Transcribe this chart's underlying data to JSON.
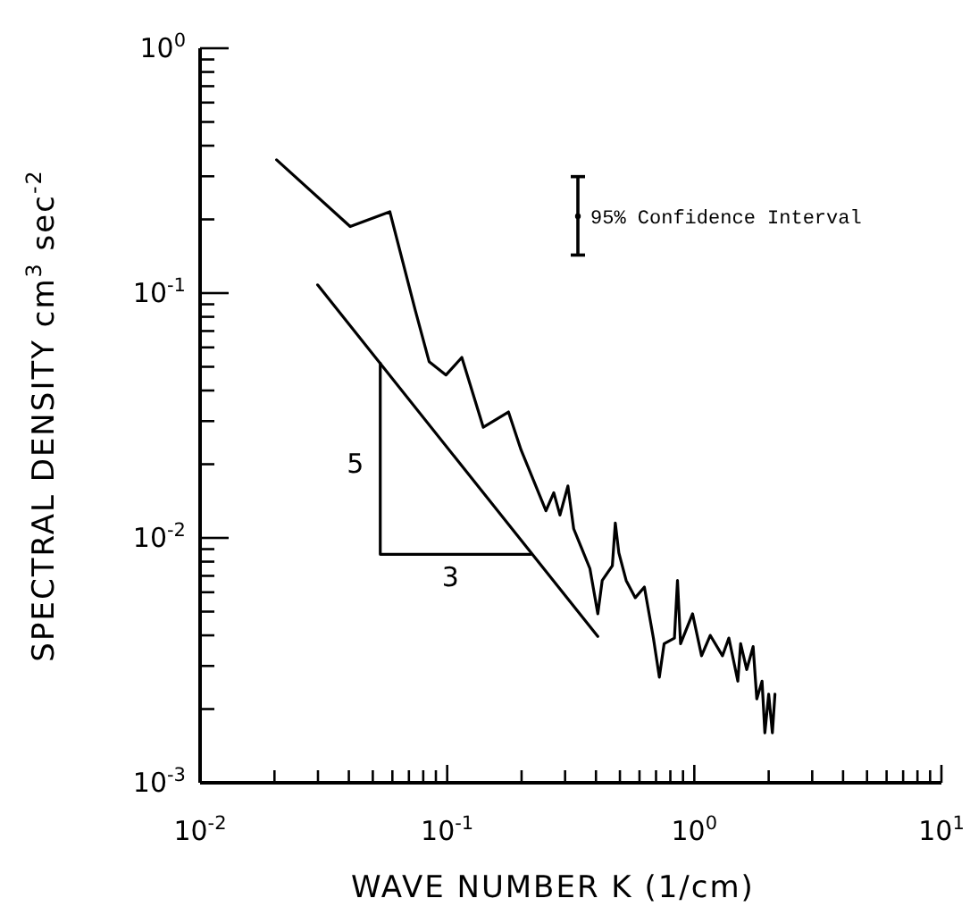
{
  "chart_data": {
    "type": "line",
    "xlabel": "WAVE NUMBER  K  (1/cm)",
    "ylabel": "SPECTRAL DENSITY  cm$^{3}$ sec$^{-2}$",
    "log": "xy",
    "grid": false,
    "legend": false,
    "line_style": "solid",
    "xlim": [
      0.01,
      10
    ],
    "ylim": [
      0.001,
      1
    ],
    "xticks": [
      {
        "value": 0.01,
        "label": "10$^{-2}$"
      },
      {
        "value": 0.02,
        "label": null
      },
      {
        "value": 0.03,
        "label": null
      },
      {
        "value": 0.04,
        "label": null
      },
      {
        "value": 0.05,
        "label": null
      },
      {
        "value": 0.06,
        "label": null
      },
      {
        "value": 0.07,
        "label": null
      },
      {
        "value": 0.08,
        "label": null
      },
      {
        "value": 0.09,
        "label": null
      },
      {
        "value": 0.1,
        "label": "10$^{-1}$"
      },
      {
        "value": 0.2,
        "label": null
      },
      {
        "value": 0.3,
        "label": null
      },
      {
        "value": 0.4,
        "label": null
      },
      {
        "value": 0.5,
        "label": null
      },
      {
        "value": 0.6,
        "label": null
      },
      {
        "value": 0.7,
        "label": null
      },
      {
        "value": 0.8,
        "label": null
      },
      {
        "value": 0.9,
        "label": null
      },
      {
        "value": 1,
        "label": "10$^{0}$"
      },
      {
        "value": 2,
        "label": null
      },
      {
        "value": 3,
        "label": null
      },
      {
        "value": 4,
        "label": null
      },
      {
        "value": 5,
        "label": null
      },
      {
        "value": 6,
        "label": null
      },
      {
        "value": 7,
        "label": null
      },
      {
        "value": 8,
        "label": null
      },
      {
        "value": 9,
        "label": null
      },
      {
        "value": 10,
        "label": "10$^{1}$"
      }
    ],
    "yticks": [
      {
        "value": 0.001,
        "label": "10$^{-3}$"
      },
      {
        "value": 0.002,
        "label": null
      },
      {
        "value": 0.003,
        "label": null
      },
      {
        "value": 0.004,
        "label": null
      },
      {
        "value": 0.005,
        "label": null
      },
      {
        "value": 0.006,
        "label": null
      },
      {
        "value": 0.007,
        "label": null
      },
      {
        "value": 0.008,
        "label": null
      },
      {
        "value": 0.009,
        "label": null
      },
      {
        "value": 0.01,
        "label": "10$^{-2}$"
      },
      {
        "value": 0.02,
        "label": null
      },
      {
        "value": 0.03,
        "label": null
      },
      {
        "value": 0.04,
        "label": null
      },
      {
        "value": 0.05,
        "label": null
      },
      {
        "value": 0.06,
        "label": null
      },
      {
        "value": 0.07,
        "label": null
      },
      {
        "value": 0.08,
        "label": null
      },
      {
        "value": 0.09,
        "label": null
      },
      {
        "value": 0.1,
        "label": "10$^{-1}$"
      },
      {
        "value": 0.2,
        "label": null
      },
      {
        "value": 0.3,
        "label": null
      },
      {
        "value": 0.4,
        "label": null
      },
      {
        "value": 0.5,
        "label": null
      },
      {
        "value": 0.6,
        "label": null
      },
      {
        "value": 0.7,
        "label": null
      },
      {
        "value": 0.8,
        "label": null
      },
      {
        "value": 0.9,
        "label": null
      },
      {
        "value": 1,
        "label": "10$^{0}$"
      }
    ],
    "annotations": [
      {
        "text": "5",
        "x": 0.0536,
        "y": 0.025
      },
      {
        "text": "3",
        "x": 0.13,
        "y": 0.00857
      }
    ],
    "series": [
      {
        "color": "#000000",
        "x": [
          0.0204,
          0.0405,
          0.0586,
          0.0743,
          0.0845,
          0.0989,
          0.1146,
          0.14,
          0.177,
          0.199,
          0.251,
          0.27,
          0.286,
          0.308,
          0.325,
          0.348,
          0.378,
          0.407,
          0.424,
          0.466,
          0.479,
          0.495,
          0.53,
          0.577,
          0.628,
          0.683,
          0.722,
          0.755,
          0.831,
          0.855,
          0.88,
          0.984,
          1.07,
          1.16,
          1.3,
          1.38,
          1.5,
          1.54,
          1.63,
          1.73,
          1.79,
          1.88,
          1.93,
          2.0,
          2.07,
          2.12
        ],
        "values": [
          0.35,
          0.187,
          0.215,
          0.085,
          0.0525,
          0.0463,
          0.0546,
          0.0283,
          0.0327,
          0.0229,
          0.0129,
          0.0153,
          0.0124,
          0.0163,
          0.0109,
          0.0092,
          0.0075,
          0.0049,
          0.0067,
          0.0077,
          0.0115,
          0.0087,
          0.0067,
          0.0057,
          0.0063,
          0.0039,
          0.0027,
          0.0037,
          0.0039,
          0.0067,
          0.0037,
          0.0049,
          0.0033,
          0.004,
          0.0033,
          0.0039,
          0.0026,
          0.0037,
          0.0029,
          0.0036,
          0.0022,
          0.0026,
          0.0016,
          0.0023,
          0.0016,
          0.0023
        ]
      },
      {
        "color": "#000000",
        "x": [
          0.0299,
          0.407
        ],
        "values": [
          0.108,
          0.00396
        ]
      },
      {
        "color": "#000000",
        "x": [
          0.0536,
          0.0536,
          0.218
        ],
        "values": [
          0.0518,
          0.00857,
          0.00857
        ]
      },
      {
        "type": "scatter",
        "marker": "circle",
        "name": "95% Confidence Interval",
        "color": "#000000",
        "x": [
          0.338
        ],
        "values": [
          0.206
        ],
        "errors": [
          [
            0.143,
            0.299
          ]
        ]
      }
    ]
  }
}
